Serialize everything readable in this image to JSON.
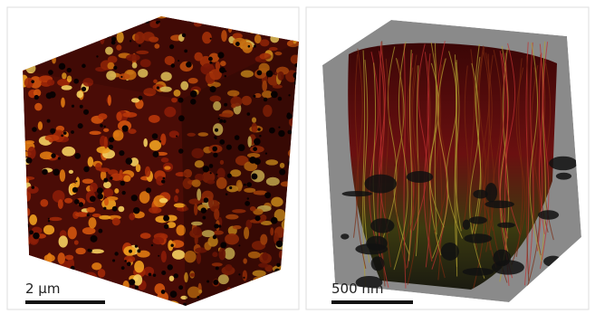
{
  "panels": [
    {
      "scale_bar": "2 µm"
    },
    {
      "scale_bar": "500 nm"
    }
  ]
}
